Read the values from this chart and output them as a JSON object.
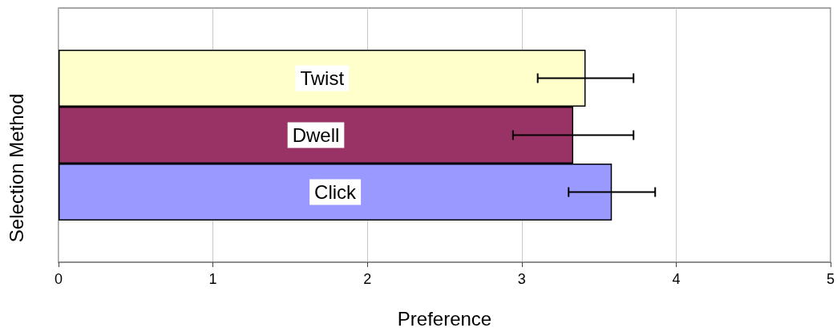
{
  "chart_data": {
    "type": "bar",
    "orientation": "horizontal",
    "xlabel": "Preference",
    "ylabel": "Selection Method",
    "categories": [
      "Twist",
      "Dwell",
      "Click"
    ],
    "values": [
      3.41,
      3.33,
      3.58
    ],
    "errors": [
      0.31,
      0.39,
      0.28
    ],
    "colors": [
      "#ffffcc",
      "#993366",
      "#9999ff"
    ],
    "xlim": [
      0,
      5
    ],
    "xticks": [
      0,
      1,
      2,
      3,
      4,
      5
    ],
    "grid": "x",
    "tick_labels": "x"
  }
}
